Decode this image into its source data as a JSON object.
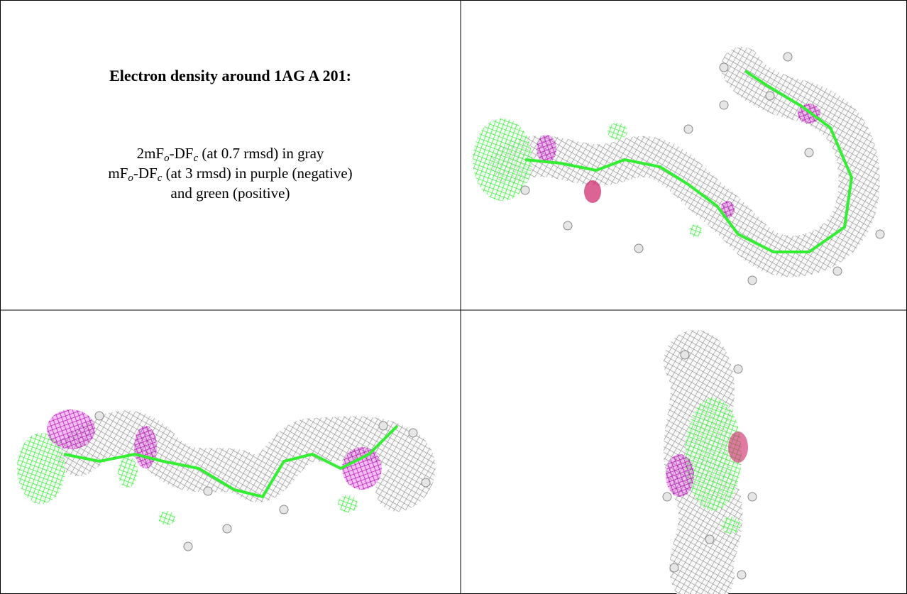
{
  "caption": {
    "title": "Electron density around 1AG A 201:",
    "lines": [
      [
        "2mF",
        "o",
        "-DF",
        "c",
        " (at 0.7 rmsd) in gray"
      ],
      [
        "mF",
        "o",
        "-DF",
        "c",
        " (at 3 rmsd) in purple (negative)"
      ],
      [
        "and green (positive)"
      ]
    ]
  }
}
